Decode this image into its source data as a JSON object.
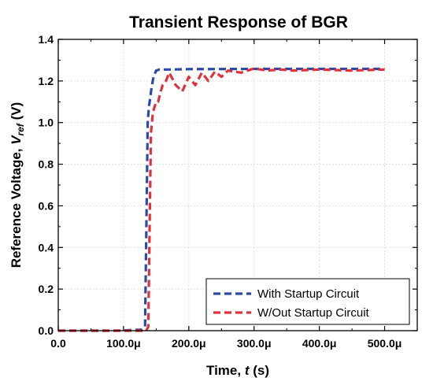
{
  "chart_data": {
    "type": "line",
    "title": "Transient Response of BGR",
    "xlabel": {
      "main": "Time, ",
      "var": "t",
      "unit": " (s)"
    },
    "ylabel": {
      "main": "Reference Voltage, ",
      "var": "V",
      "sub": "ref",
      "unit": " (V)"
    },
    "xlim": [
      0,
      0.00055
    ],
    "ylim": [
      0,
      1.4
    ],
    "x_ticks": [
      0,
      0.0001,
      0.0002,
      0.0003,
      0.0004,
      0.0005
    ],
    "x_tick_labels": [
      "0.0",
      "100.0μ",
      "200.0μ",
      "300.0μ",
      "400.0μ",
      "500.0μ"
    ],
    "y_ticks": [
      0,
      0.2,
      0.4,
      0.6,
      0.8,
      1.0,
      1.2,
      1.4
    ],
    "y_tick_labels": [
      "0.0",
      "0.2",
      "0.4",
      "0.6",
      "0.8",
      "1.0",
      "1.2",
      "1.4"
    ],
    "grid": true,
    "legend_position": "bottom-right",
    "series": [
      {
        "name": "With Startup Circuit",
        "color": "#2b4aa6",
        "x": [
          0,
          9e-05,
          0.000128,
          0.000133,
          0.000135,
          0.000137,
          0.000139,
          0.000141,
          0.000143,
          0.000146,
          0.00015,
          0.000155,
          0.00017,
          0.0002,
          0.0003,
          0.0004,
          0.0005
        ],
        "values": [
          0,
          0,
          0.005,
          0.02,
          0.5,
          1.0,
          1.08,
          1.12,
          1.17,
          1.22,
          1.25,
          1.255,
          1.255,
          1.257,
          1.258,
          1.258,
          1.258
        ]
      },
      {
        "name": "W/Out Startup Circuit",
        "color": "#e0323c",
        "x": [
          0,
          0.000135,
          0.000138,
          0.00014,
          0.000142,
          0.000145,
          0.000148,
          0.00015,
          0.000153,
          0.000157,
          0.00016,
          0.000165,
          0.00017,
          0.00018,
          0.00019,
          0.0002,
          0.00021,
          0.00022,
          0.00023,
          0.00024,
          0.00025,
          0.00026,
          0.00028,
          0.0003,
          0.00032,
          0.00034,
          0.00036,
          0.0004,
          0.00045,
          0.0005
        ],
        "values": [
          0,
          0,
          0.02,
          0.5,
          0.95,
          1.05,
          1.08,
          1.1,
          1.1,
          1.15,
          1.18,
          1.2,
          1.24,
          1.18,
          1.15,
          1.22,
          1.18,
          1.24,
          1.2,
          1.245,
          1.22,
          1.25,
          1.24,
          1.26,
          1.25,
          1.255,
          1.25,
          1.255,
          1.25,
          1.255
        ]
      }
    ]
  }
}
